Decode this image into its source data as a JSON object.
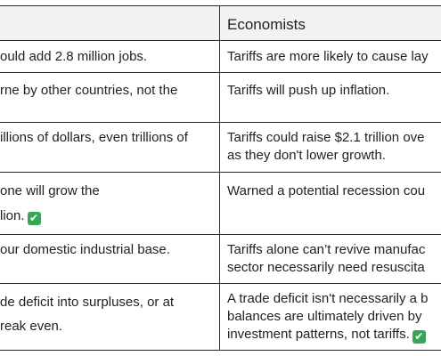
{
  "table": {
    "header": {
      "left": "",
      "right": "Economists"
    },
    "rows": [
      {
        "left": [
          "ould add 2.8 million jobs."
        ],
        "right": [
          "Tariffs are more likely to cause lay"
        ]
      },
      {
        "left": [
          "rne by other countries, not the"
        ],
        "right": [
          "Tariffs will push up inflation."
        ]
      },
      {
        "left": [
          "illions of dollars, even trillions of"
        ],
        "right": [
          "Tariffs could raise $2.1 trillion ove",
          "as they don't lower growth."
        ]
      },
      {
        "left": [
          "one will grow the",
          "lion."
        ],
        "right": [
          "Warned a potential recession cou"
        ]
      },
      {
        "left": [
          "our domestic industrial base."
        ],
        "right": [
          "Tariffs alone can’t revive manufac",
          "sector necessarily need resuscita"
        ]
      },
      {
        "left": [
          "de deficit into surpluses, or at",
          "reak even."
        ],
        "right": [
          "A trade deficit isn't necessarily a b",
          "balances are ultimately driven by",
          "investment patterns, not tariffs."
        ]
      }
    ],
    "check_mark": "✔",
    "check_color": "#34a853",
    "border_color": "#2b2b2b",
    "header_bg": "#f2f2f2"
  }
}
